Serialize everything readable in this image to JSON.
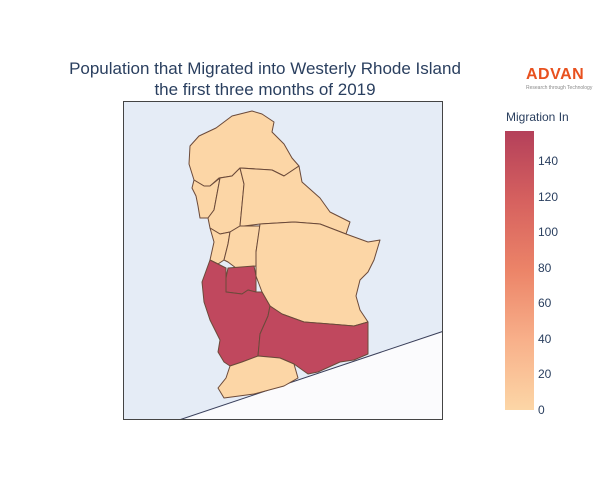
{
  "title": {
    "line1": "Population that Migrated into Westerly Rhode Island",
    "line2": "the first three months of 2019"
  },
  "logo": {
    "text": "ADVAN",
    "tagline": "Research through Technology"
  },
  "colorbar": {
    "title": "Migration In",
    "ticks": [
      "0",
      "20",
      "40",
      "60",
      "80",
      "100",
      "120",
      "140"
    ],
    "min": 0,
    "max": 157,
    "colorscale": [
      "#fcd6a6",
      "#f5a27a",
      "#e8745f",
      "#d0505f",
      "#b4405a"
    ]
  },
  "colors": {
    "low": "#fcd6a6",
    "high": "#c0485e",
    "ocean": "#fbfbfd",
    "land_bg": "#e5ecf6",
    "border": "#6b4a3a"
  },
  "regions": [
    {
      "name": "north-tract",
      "value": 0
    },
    {
      "name": "northwest-tract-1",
      "value": 0
    },
    {
      "name": "northwest-tract-2",
      "value": 0
    },
    {
      "name": "central-north-tract",
      "value": 0
    },
    {
      "name": "west-mid-tract",
      "value": 0
    },
    {
      "name": "east-large-tract",
      "value": 0
    },
    {
      "name": "west-upper-tract",
      "value": 0
    },
    {
      "name": "small-central-tract",
      "value": 157
    },
    {
      "name": "southwest-tract",
      "value": 157
    },
    {
      "name": "south-central-tract",
      "value": 157
    },
    {
      "name": "southern-coast-tract",
      "value": 0
    }
  ]
}
